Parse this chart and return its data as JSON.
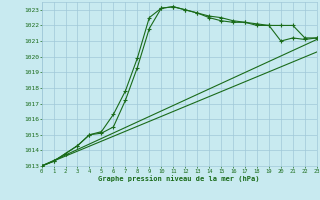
{
  "title": "Graphe pression niveau de la mer (hPa)",
  "bg_color": "#c8eaf0",
  "grid_color": "#a0c8d8",
  "line_color": "#1a6b1a",
  "xlim": [
    0,
    23
  ],
  "ylim": [
    1013,
    1023.5
  ],
  "yticks": [
    1013,
    1014,
    1015,
    1016,
    1017,
    1018,
    1019,
    1020,
    1021,
    1022,
    1023
  ],
  "xticks": [
    0,
    1,
    2,
    3,
    4,
    5,
    6,
    7,
    8,
    9,
    10,
    11,
    12,
    13,
    14,
    15,
    16,
    17,
    18,
    19,
    20,
    21,
    22,
    23
  ],
  "series1_x": [
    0,
    1,
    2,
    3,
    4,
    5,
    6,
    7,
    8,
    9,
    10,
    11,
    12,
    13,
    14,
    15,
    16,
    17,
    18,
    19,
    20,
    21,
    22,
    23
  ],
  "series1_y": [
    1013.0,
    1013.3,
    1013.8,
    1014.3,
    1015.0,
    1015.1,
    1015.5,
    1017.2,
    1019.3,
    1021.8,
    1023.1,
    1023.2,
    1023.0,
    1022.8,
    1022.5,
    1022.3,
    1022.2,
    1022.2,
    1022.0,
    1022.0,
    1021.0,
    1021.2,
    1021.1,
    1021.2
  ],
  "series2_x": [
    0,
    1,
    2,
    3,
    4,
    5,
    6,
    7,
    8,
    9,
    10,
    11,
    12,
    13,
    14,
    15,
    16,
    17,
    18,
    19,
    20,
    21,
    22,
    23
  ],
  "series2_y": [
    1013.0,
    1013.3,
    1013.8,
    1014.3,
    1015.0,
    1015.2,
    1016.3,
    1017.8,
    1019.9,
    1022.5,
    1023.1,
    1023.2,
    1023.0,
    1022.8,
    1022.6,
    1022.5,
    1022.3,
    1022.2,
    1022.1,
    1022.0,
    1022.0,
    1022.0,
    1021.2,
    1021.2
  ],
  "trend1_x": [
    0,
    23
  ],
  "trend1_y": [
    1013.0,
    1021.1
  ],
  "trend2_x": [
    0,
    23
  ],
  "trend2_y": [
    1013.0,
    1020.3
  ]
}
